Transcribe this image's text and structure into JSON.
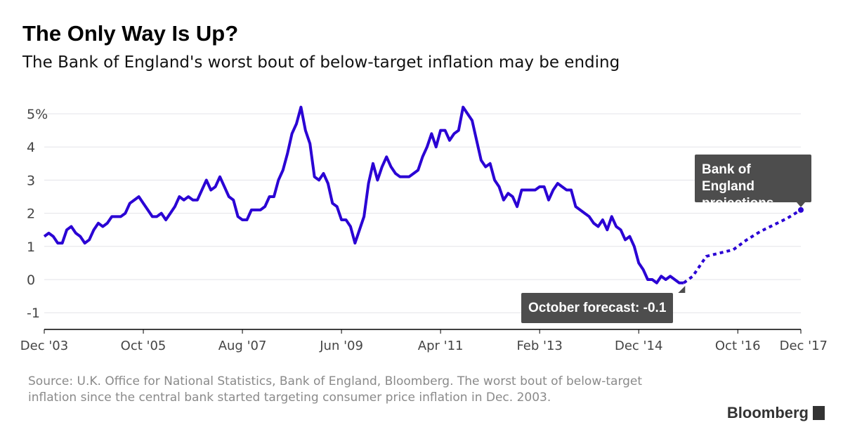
{
  "title": "The Only Way Is Up?",
  "subtitle": "The Bank of England's worst bout of below-target inflation may be ending",
  "source": "Source: U.K. Office for National Statistics, Bank of England, Bloomberg. The worst bout of below-target inflation since the central bank started targeting consumer price inflation in Dec. 2003.",
  "logo": "Bloomberg",
  "chart_data": {
    "type": "line",
    "title": "The Only Way Is Up?",
    "ylim": [
      -1.5,
      5.3
    ],
    "yticks": [
      5,
      4,
      3,
      2,
      1,
      0,
      -1
    ],
    "ytick_labels": [
      "5%",
      "4",
      "3",
      "2",
      "1",
      "0",
      "-1"
    ],
    "xrange": [
      "2003-12",
      "2017-12"
    ],
    "xticks": [
      "2003-12",
      "2005-10",
      "2007-08",
      "2009-06",
      "2011-04",
      "2013-02",
      "2014-12",
      "2016-10",
      "2017-12"
    ],
    "xtick_labels": [
      "Dec '03",
      "Oct '05",
      "Aug '07",
      "Jun '09",
      "Apr '11",
      "Feb '13",
      "Dec '14",
      "Oct '16",
      "Dec '17"
    ],
    "grid": true,
    "line_color": "#2a00d4",
    "actual": {
      "start": "2003-12",
      "frequency": "monthly",
      "values": [
        1.3,
        1.4,
        1.3,
        1.1,
        1.1,
        1.5,
        1.6,
        1.4,
        1.3,
        1.1,
        1.2,
        1.5,
        1.7,
        1.6,
        1.7,
        1.9,
        1.9,
        1.9,
        2.0,
        2.3,
        2.4,
        2.5,
        2.3,
        2.1,
        1.9,
        1.9,
        2.0,
        1.8,
        2.0,
        2.2,
        2.5,
        2.4,
        2.5,
        2.4,
        2.4,
        2.7,
        3.0,
        2.7,
        2.8,
        3.1,
        2.8,
        2.5,
        2.4,
        1.9,
        1.8,
        1.8,
        2.1,
        2.1,
        2.1,
        2.2,
        2.5,
        2.5,
        3.0,
        3.3,
        3.8,
        4.4,
        4.7,
        5.2,
        4.5,
        4.1,
        3.1,
        3.0,
        3.2,
        2.9,
        2.3,
        2.2,
        1.8,
        1.8,
        1.6,
        1.1,
        1.5,
        1.9,
        2.9,
        3.5,
        3.0,
        3.4,
        3.7,
        3.4,
        3.2,
        3.1,
        3.1,
        3.1,
        3.2,
        3.3,
        3.7,
        4.0,
        4.4,
        4.0,
        4.5,
        4.5,
        4.2,
        4.4,
        4.5,
        5.2,
        5.0,
        4.8,
        4.2,
        3.6,
        3.4,
        3.5,
        3.0,
        2.8,
        2.4,
        2.6,
        2.5,
        2.2,
        2.7,
        2.7,
        2.7,
        2.7,
        2.8,
        2.8,
        2.4,
        2.7,
        2.9,
        2.8,
        2.7,
        2.7,
        2.2,
        2.1,
        2.0,
        1.9,
        1.7,
        1.6,
        1.8,
        1.5,
        1.9,
        1.6,
        1.5,
        1.2,
        1.3,
        1.0,
        0.5,
        0.3,
        0.0,
        0.0,
        -0.1,
        0.1,
        0.0,
        0.1,
        0.0,
        -0.1,
        -0.1
      ]
    },
    "projection": {
      "style": "dotted",
      "points": [
        [
          "2015-10",
          -0.1
        ],
        [
          "2015-12",
          0.1
        ],
        [
          "2016-03",
          0.7
        ],
        [
          "2016-06",
          0.8
        ],
        [
          "2016-09",
          0.9
        ],
        [
          "2016-12",
          1.2
        ],
        [
          "2017-03",
          1.45
        ],
        [
          "2017-06",
          1.65
        ],
        [
          "2017-09",
          1.85
        ],
        [
          "2017-12",
          2.1
        ]
      ]
    },
    "annotations": [
      "October forecast: -0.1",
      "Bank of England projections"
    ]
  }
}
